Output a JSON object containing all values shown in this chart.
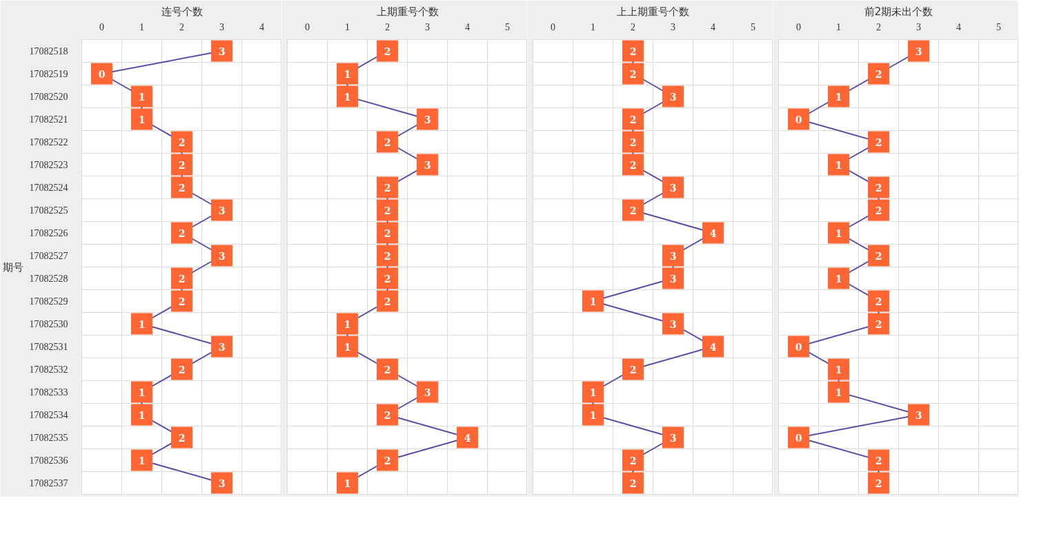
{
  "chart_data": [
    {
      "type": "line",
      "title": "连号个数",
      "ylabel": "期号",
      "orientation": "horizontal",
      "categories": [
        "17082518",
        "17082519",
        "17082520",
        "17082521",
        "17082522",
        "17082523",
        "17082524",
        "17082525",
        "17082526",
        "17082527",
        "17082528",
        "17082529",
        "17082530",
        "17082531",
        "17082532",
        "17082533",
        "17082534",
        "17082535",
        "17082536",
        "17082537"
      ],
      "series": [
        {
          "color": "#5b4fa5",
          "colors": [
            "#ff6633",
            "#ff6633",
            "#ff6633",
            "#ff6633",
            "#ff6633",
            "#ff6633",
            "#ff6633",
            "#ff6633",
            "#ff6633",
            "#ff6633",
            "#ff6633",
            "#ff6633",
            "#ff6633",
            "#ff6633",
            "#ff6633",
            "#ff6633",
            "#ff6633",
            "#ff6633",
            "#ff6633",
            "#ff6633"
          ],
          "values": [
            3,
            0,
            1,
            1,
            2,
            2,
            2,
            3,
            2,
            3,
            2,
            2,
            1,
            3,
            2,
            1,
            1,
            2,
            1,
            3
          ]
        }
      ],
      "xlim": [
        -0.5,
        4.5
      ],
      "xticks": [
        0,
        1,
        2,
        3,
        4
      ],
      "grid": true,
      "marker": "square",
      "line_style": "solid",
      "data_labels": true
    },
    {
      "type": "line",
      "title": "上期重号个数",
      "orientation": "horizontal",
      "tick_labels": "x",
      "categories": [
        "17082518",
        "17082519",
        "17082520",
        "17082521",
        "17082522",
        "17082523",
        "17082524",
        "17082525",
        "17082526",
        "17082527",
        "17082528",
        "17082529",
        "17082530",
        "17082531",
        "17082532",
        "17082533",
        "17082534",
        "17082535",
        "17082536",
        "17082537"
      ],
      "series": [
        {
          "color": "#5b4fa5",
          "colors": [
            "#ff6633",
            "#ff6633",
            "#ff6633",
            "#ff6633",
            "#ff6633",
            "#ff6633",
            "#ff6633",
            "#ff6633",
            "#ff6633",
            "#ff6633",
            "#ff6633",
            "#ff6633",
            "#ff6633",
            "#ff6633",
            "#ff6633",
            "#ff6633",
            "#ff6633",
            "#ff6633",
            "#ff6633",
            "#ff6633"
          ],
          "values": [
            2,
            1,
            1,
            3,
            2,
            3,
            2,
            2,
            2,
            2,
            2,
            2,
            1,
            1,
            2,
            3,
            2,
            4,
            2,
            1
          ]
        }
      ],
      "xlim": [
        -0.5,
        5.5
      ],
      "xticks": [
        0,
        1,
        2,
        3,
        4,
        5
      ],
      "grid": true,
      "marker": "square",
      "line_style": "solid",
      "data_labels": true
    },
    {
      "type": "line",
      "title": "上上期重号个数",
      "orientation": "horizontal",
      "tick_labels": "x",
      "categories": [
        "17082518",
        "17082519",
        "17082520",
        "17082521",
        "17082522",
        "17082523",
        "17082524",
        "17082525",
        "17082526",
        "17082527",
        "17082528",
        "17082529",
        "17082530",
        "17082531",
        "17082532",
        "17082533",
        "17082534",
        "17082535",
        "17082536",
        "17082537"
      ],
      "series": [
        {
          "color": "#5b4fa5",
          "colors": [
            "#ff6633",
            "#ff6633",
            "#ff6633",
            "#ff6633",
            "#ff6633",
            "#ff6633",
            "#ff6633",
            "#ff6633",
            "#ff6633",
            "#ff6633",
            "#ff6633",
            "#ff6633",
            "#ff6633",
            "#ff6633",
            "#ff6633",
            "#ff6633",
            "#ff6633",
            "#ff6633",
            "#ff6633",
            "#ff6633"
          ],
          "values": [
            2,
            2,
            3,
            2,
            2,
            2,
            3,
            2,
            4,
            3,
            3,
            1,
            3,
            4,
            2,
            1,
            1,
            3,
            2,
            2
          ]
        }
      ],
      "xlim": [
        -0.5,
        5.5
      ],
      "xticks": [
        0,
        1,
        2,
        3,
        4,
        5
      ],
      "grid": true,
      "marker": "square",
      "line_style": "solid",
      "data_labels": true
    },
    {
      "type": "line",
      "title": "前2期未出个数",
      "orientation": "horizontal",
      "tick_labels": "x",
      "categories": [
        "17082518",
        "17082519",
        "17082520",
        "17082521",
        "17082522",
        "17082523",
        "17082524",
        "17082525",
        "17082526",
        "17082527",
        "17082528",
        "17082529",
        "17082530",
        "17082531",
        "17082532",
        "17082533",
        "17082534",
        "17082535",
        "17082536",
        "17082537"
      ],
      "series": [
        {
          "color": "#5b4fa5",
          "colors": [
            "#ff6633",
            "#ff6633",
            "#ff6633",
            "#ff6633",
            "#ff6633",
            "#ff6633",
            "#ff6633",
            "#ff6633",
            "#ff6633",
            "#ff6633",
            "#ff6633",
            "#ff6633",
            "#ff6633",
            "#ff6633",
            "#ff6633",
            "#ff6633",
            "#ff6633",
            "#ff6633",
            "#ff6633",
            "#ff6633"
          ],
          "values": [
            3,
            2,
            1,
            0,
            2,
            1,
            2,
            2,
            1,
            2,
            1,
            2,
            2,
            0,
            1,
            1,
            3,
            0,
            2,
            2
          ]
        }
      ],
      "xlim": [
        -0.5,
        5.5
      ],
      "xticks": [
        0,
        1,
        2,
        3,
        4,
        5
      ],
      "grid": true,
      "marker": "square",
      "line_style": "solid",
      "data_labels": true
    }
  ]
}
